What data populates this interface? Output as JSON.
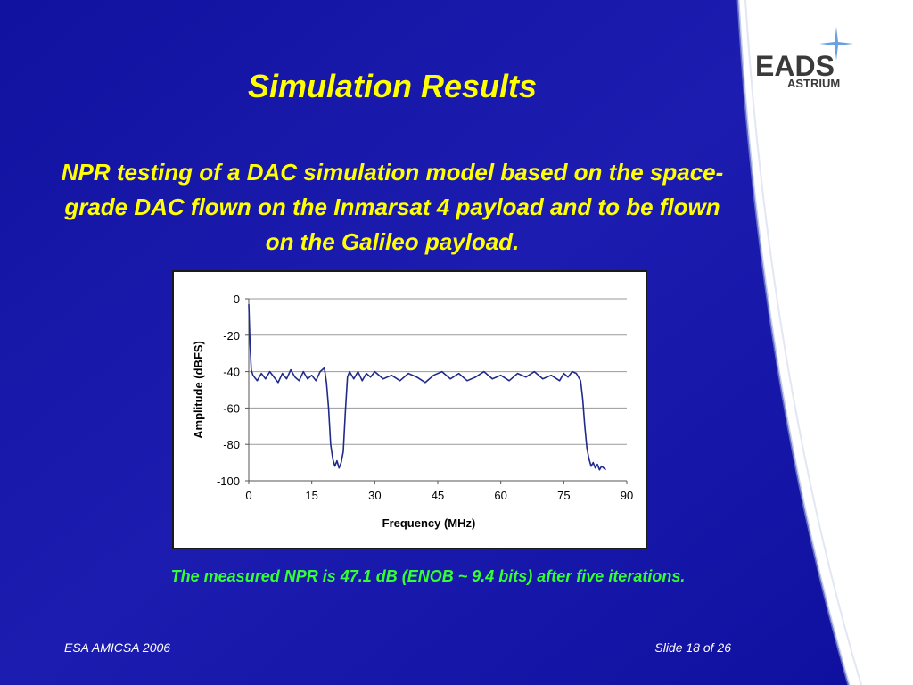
{
  "slide": {
    "title": "Simulation Results",
    "subtitle": "NPR testing of a DAC simulation model based on the space-grade DAC flown on the Inmarsat 4 payload and to be flown on the Galileo payload.",
    "caption": "The measured NPR is 47.1 dB (ENOB ~ 9.4 bits) after five iterations.",
    "footer_left": "ESA AMICSA 2006",
    "footer_right": "Slide 18 of 26",
    "logo": {
      "name": "EADS",
      "sub": "ASTRIUM",
      "icon": "star-icon"
    },
    "colors": {
      "background": "#1b1ba8",
      "title": "#ffff00",
      "caption": "#33ff33",
      "series": "#1f2a8a"
    }
  },
  "chart_data": {
    "type": "line",
    "title": "",
    "xlabel": "Frequency (MHz)",
    "ylabel": "Amplitude (dBFS)",
    "xlim": [
      0,
      90
    ],
    "ylim": [
      -100,
      0
    ],
    "xticks": [
      0,
      15,
      30,
      45,
      60,
      75,
      90
    ],
    "yticks": [
      0,
      -20,
      -40,
      -60,
      -80,
      -100
    ],
    "grid": "horizontal",
    "legend": "none",
    "series": [
      {
        "x": [
          0,
          0.3,
          0.6,
          1,
          2,
          3,
          4,
          5,
          6,
          7,
          8,
          9,
          10,
          11,
          12,
          13,
          14,
          15,
          16,
          17,
          18,
          18.5,
          19,
          19.5,
          20,
          20.5,
          21,
          21.5,
          22,
          22.5,
          23,
          23.5,
          24,
          25,
          26,
          27,
          28,
          29,
          30,
          32,
          34,
          36,
          38,
          40,
          42,
          44,
          46,
          48,
          50,
          52,
          54,
          56,
          58,
          60,
          62,
          64,
          66,
          68,
          70,
          72,
          74,
          75,
          76,
          77,
          78,
          78.5,
          79,
          79.5,
          80,
          80.5,
          81,
          81.5,
          82,
          82.5,
          83,
          83.5,
          84,
          84.5,
          85
        ],
        "y": [
          -3,
          -25,
          -39,
          -42,
          -45,
          -41,
          -44,
          -40,
          -43,
          -46,
          -41,
          -44,
          -39,
          -43,
          -45,
          -40,
          -44,
          -42,
          -45,
          -40,
          -38,
          -46,
          -60,
          -80,
          -88,
          -92,
          -89,
          -93,
          -90,
          -84,
          -62,
          -43,
          -40,
          -44,
          -40,
          -45,
          -41,
          -43,
          -40,
          -44,
          -42,
          -45,
          -41,
          -43,
          -46,
          -42,
          -40,
          -44,
          -41,
          -45,
          -43,
          -40,
          -44,
          -42,
          -45,
          -41,
          -43,
          -40,
          -44,
          -42,
          -45,
          -41,
          -43,
          -40,
          -41,
          -43,
          -45,
          -55,
          -70,
          -82,
          -88,
          -92,
          -90,
          -93,
          -91,
          -94,
          -92,
          -93,
          -94
        ]
      }
    ]
  }
}
